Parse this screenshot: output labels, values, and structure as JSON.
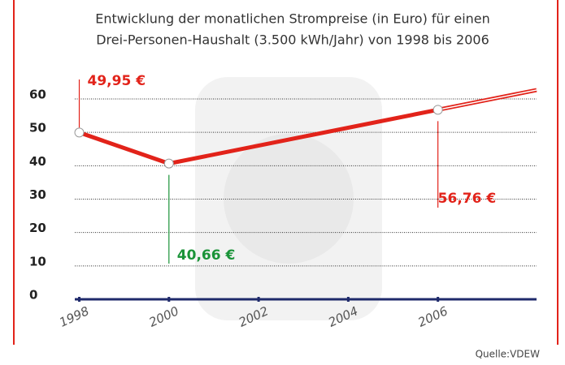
{
  "chart_data": {
    "type": "line",
    "title": [
      "Entwicklung der monatlichen Strompreise (in Euro) für einen",
      "Drei-Personen-Haushalt (3.500 kWh/Jahr) von 1998 bis 2006"
    ],
    "x": [
      1998,
      2000,
      2006
    ],
    "values": [
      49.95,
      40.66,
      56.76
    ],
    "value_labels": [
      "49,95 €",
      "40,66 €",
      "56,76 €"
    ],
    "value_label_colors": [
      "#e2231a",
      "#1a9338",
      "#e2231a"
    ],
    "color": "#e2231a",
    "xlim": [
      1997.9,
      2008.2
    ],
    "xticks": [
      1998,
      2000,
      2002,
      2004,
      2006
    ],
    "ylim": [
      0,
      60
    ],
    "yticks": [
      0,
      10,
      20,
      30,
      40,
      50,
      60
    ],
    "grid": true,
    "source": "Quelle:VDEW"
  }
}
